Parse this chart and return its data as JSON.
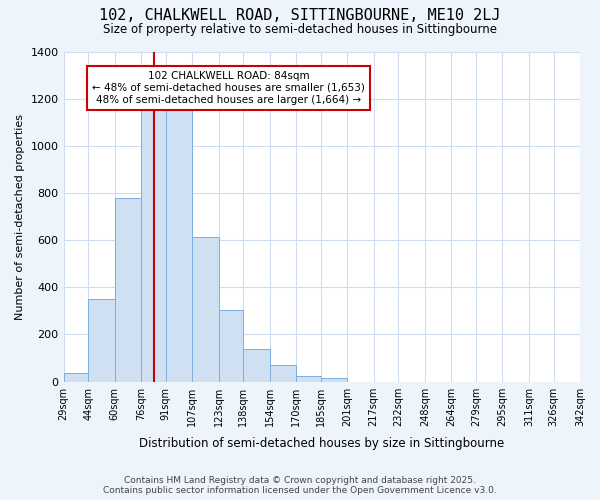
{
  "title": "102, CHALKWELL ROAD, SITTINGBOURNE, ME10 2LJ",
  "subtitle": "Size of property relative to semi-detached houses in Sittingbourne",
  "xlabel": "Distribution of semi-detached houses by size in Sittingbourne",
  "ylabel": "Number of semi-detached properties",
  "bin_edges": [
    29,
    44,
    60,
    76,
    91,
    107,
    123,
    138,
    154,
    170,
    185,
    201,
    217,
    232,
    248,
    264,
    279,
    295,
    311,
    326,
    342
  ],
  "bar_heights": [
    35,
    350,
    780,
    1150,
    1150,
    615,
    305,
    140,
    70,
    25,
    15,
    0,
    0,
    0,
    0,
    0,
    0,
    0,
    0,
    0
  ],
  "bar_color": "#cfe0f3",
  "bar_edge_color": "#7aafe0",
  "property_size": 84,
  "red_line_color": "#cc0000",
  "annotation_title": "102 CHALKWELL ROAD: 84sqm",
  "annotation_line1": "← 48% of semi-detached houses are smaller (1,653)",
  "annotation_line2": "48% of semi-detached houses are larger (1,664) →",
  "annotation_box_color": "#cc0000",
  "ylim": [
    0,
    1400
  ],
  "plot_bg_color": "#ffffff",
  "fig_bg_color": "#eef4fb",
  "grid_color": "#d0ddf0",
  "footer_line1": "Contains HM Land Registry data © Crown copyright and database right 2025.",
  "footer_line2": "Contains public sector information licensed under the Open Government Licence v3.0.",
  "tick_labels": [
    "29sqm",
    "44sqm",
    "60sqm",
    "76sqm",
    "91sqm",
    "107sqm",
    "123sqm",
    "138sqm",
    "154sqm",
    "170sqm",
    "185sqm",
    "201sqm",
    "217sqm",
    "232sqm",
    "248sqm",
    "264sqm",
    "279sqm",
    "295sqm",
    "311sqm",
    "326sqm",
    "342sqm"
  ]
}
